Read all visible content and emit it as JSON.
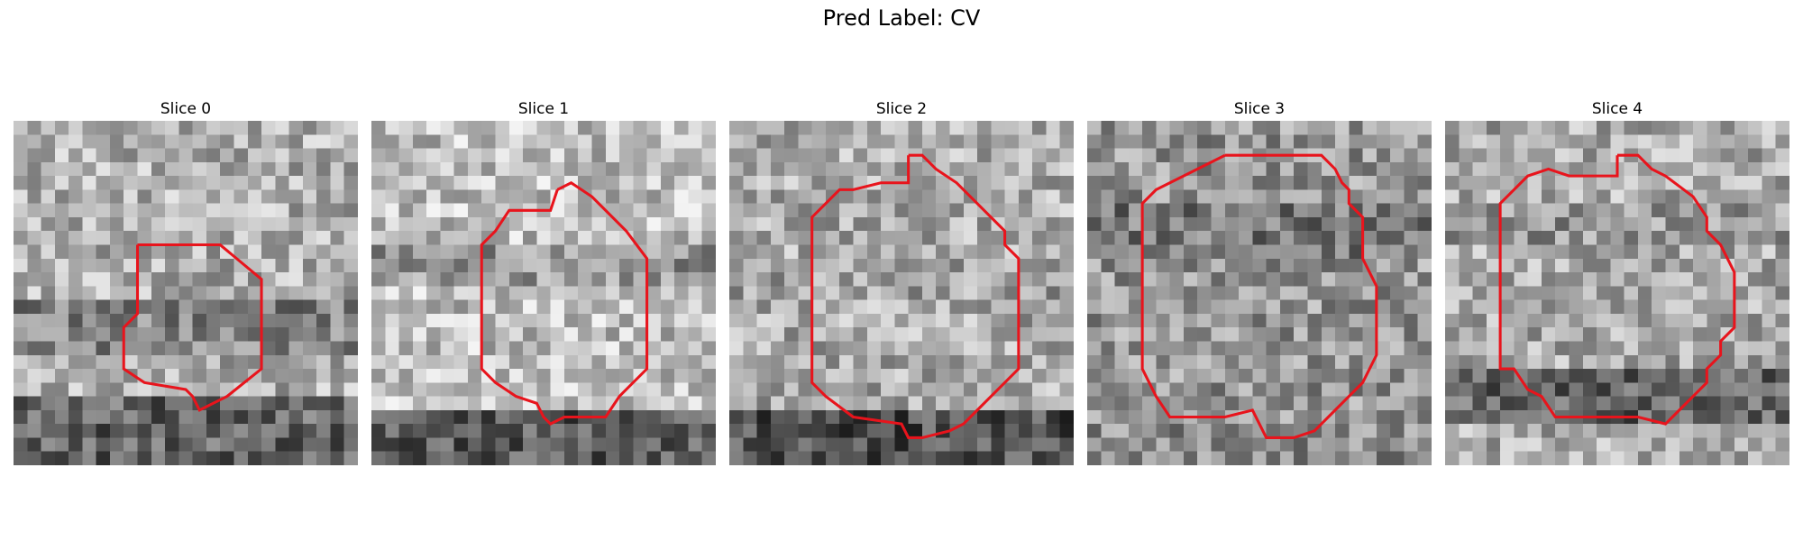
{
  "figure": {
    "title": "Pred Label: CV"
  },
  "panels": [
    {
      "title": "Slice 0",
      "contour_color": "#e8141c",
      "image": "grayscale-noisy-microscopy-patch"
    },
    {
      "title": "Slice 1",
      "contour_color": "#e8141c",
      "image": "grayscale-noisy-microscopy-patch"
    },
    {
      "title": "Slice 2",
      "contour_color": "#e8141c",
      "image": "grayscale-noisy-microscopy-patch"
    },
    {
      "title": "Slice 3",
      "contour_color": "#e8141c",
      "image": "grayscale-noisy-microscopy-patch"
    },
    {
      "title": "Slice 4",
      "contour_color": "#e8141c",
      "image": "grayscale-noisy-microscopy-patch"
    }
  ]
}
